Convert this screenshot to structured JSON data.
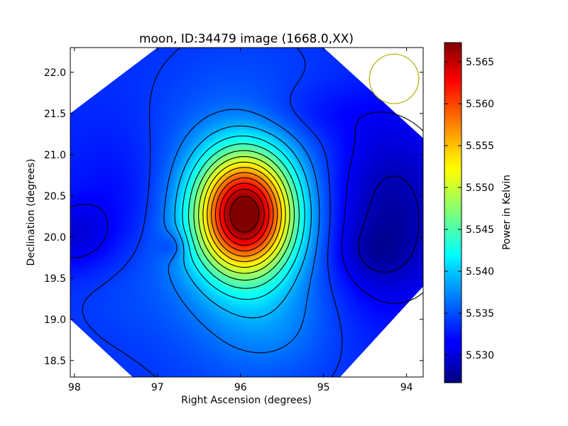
{
  "chart_data": {
    "type": "heatmap",
    "title": "moon, ID:34479 image (1668.0,XX)",
    "xlabel": "Right Ascension (degrees)",
    "ylabel": "Declination (degrees)",
    "xlim": [
      98.05,
      93.8
    ],
    "ylim": [
      18.3,
      22.3
    ],
    "x_reversed": true,
    "xticks": [
      {
        "value": 98,
        "label": "98"
      },
      {
        "value": 97,
        "label": "97"
      },
      {
        "value": 96,
        "label": "96"
      },
      {
        "value": 95,
        "label": "95"
      },
      {
        "value": 94,
        "label": "94"
      }
    ],
    "yticks": [
      {
        "value": 18.5,
        "label": "18.5"
      },
      {
        "value": 19.0,
        "label": "19.0"
      },
      {
        "value": 19.5,
        "label": "19.5"
      },
      {
        "value": 20.0,
        "label": "20.0"
      },
      {
        "value": 20.5,
        "label": "20.5"
      },
      {
        "value": 21.0,
        "label": "21.0"
      },
      {
        "value": 21.5,
        "label": "21.5"
      },
      {
        "value": 22.0,
        "label": "22.0"
      }
    ],
    "colormap": "jet",
    "colorbar": {
      "label": "Power in Kelvin",
      "range": [
        5.5267,
        5.5673
      ],
      "ticks": [
        {
          "value": 5.53,
          "label": "5.530"
        },
        {
          "value": 5.535,
          "label": "5.535"
        },
        {
          "value": 5.54,
          "label": "5.540"
        },
        {
          "value": 5.545,
          "label": "5.545"
        },
        {
          "value": 5.55,
          "label": "5.550"
        },
        {
          "value": 5.555,
          "label": "5.555"
        },
        {
          "value": 5.56,
          "label": "5.560"
        },
        {
          "value": 5.565,
          "label": "5.565"
        }
      ]
    },
    "peak": {
      "ra": 95.95,
      "dec": 20.28,
      "value": 5.5673
    },
    "features": [
      {
        "kind": "peak",
        "ra": 95.95,
        "dec": 20.28,
        "sigma_ra": 0.4,
        "sigma_dec": 0.5,
        "amplitude": 0.031
      },
      {
        "kind": "plateau",
        "ra": 96.0,
        "dec": 20.2,
        "sigma_ra": 0.75,
        "sigma_dec": 1.1,
        "amplitude": 0.005
      },
      {
        "kind": "trough",
        "ra": 94.2,
        "dec": 20.3,
        "sigma_ra": 0.55,
        "sigma_dec": 0.8,
        "amplitude": -0.0055
      },
      {
        "kind": "trough",
        "ra": 94.4,
        "dec": 19.8,
        "sigma_ra": 0.3,
        "sigma_dec": 0.25,
        "amplitude": -0.002
      },
      {
        "kind": "trough",
        "ra": 98.0,
        "dec": 20.0,
        "sigma_ra": 0.35,
        "sigma_dec": 0.3,
        "amplitude": -0.003
      },
      {
        "kind": "trough",
        "ra": 96.8,
        "dec": 19.9,
        "sigma_ra": 0.12,
        "sigma_dec": 0.12,
        "amplitude": -0.0025
      },
      {
        "kind": "trough",
        "ra": 97.4,
        "dec": 20.5,
        "sigma_ra": 0.5,
        "sigma_dec": 0.6,
        "amplitude": -0.0018
      },
      {
        "kind": "trough",
        "ra": 95.2,
        "dec": 21.5,
        "sigma_ra": 0.6,
        "sigma_dec": 0.25,
        "amplitude": -0.0015
      },
      {
        "kind": "bump",
        "ra": 95.6,
        "dec": 18.9,
        "sigma_ra": 0.5,
        "sigma_dec": 0.4,
        "amplitude": 0.0018
      },
      {
        "kind": "bump",
        "ra": 97.5,
        "dec": 19.4,
        "sigma_ra": 0.5,
        "sigma_dec": 0.5,
        "amplitude": 0.0008
      }
    ],
    "background_level": 5.5335,
    "coverage_region": "octagon",
    "beam_marker": {
      "ra": 94.15,
      "dec": 21.92,
      "radius_deg": 0.3,
      "color": "#b5b518"
    },
    "contour_color": "#000000",
    "grid": false,
    "legend": "none"
  }
}
